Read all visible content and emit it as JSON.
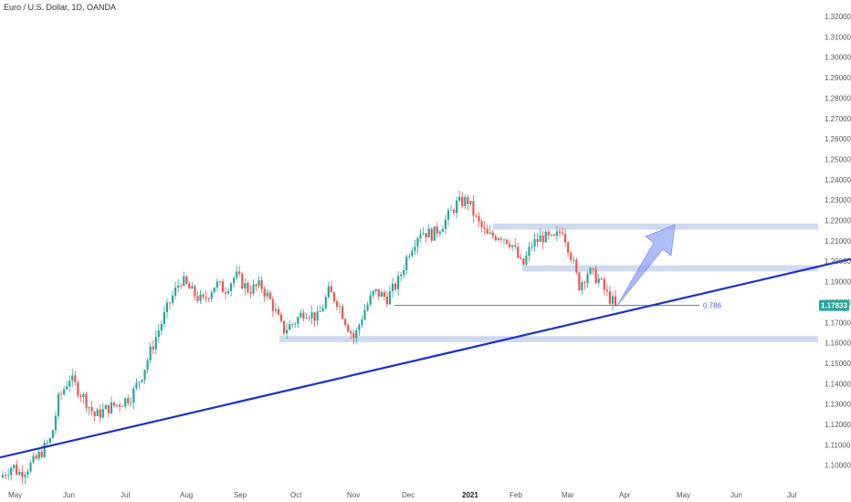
{
  "chart_data": {
    "type": "candlestick",
    "title": "Euro / U.S. Dollar, 1D, OANDA",
    "y_axis": {
      "range": [
        1.0925,
        1.3275
      ],
      "ticks": [
        "1.32000",
        "1.31000",
        "1.30000",
        "1.29000",
        "1.28000",
        "1.27000",
        "1.26000",
        "1.25000",
        "1.24000",
        "1.23000",
        "1.22000",
        "1.21000",
        "1.20000",
        "1.19000",
        "1.18000",
        "1.17000",
        "1.16000",
        "1.15000",
        "1.14000",
        "1.13000",
        "1.12000",
        "1.11000",
        "1.10000"
      ]
    },
    "x_axis": {
      "ticks": [
        {
          "label": "May",
          "bold": false
        },
        {
          "label": "Jun",
          "bold": false
        },
        {
          "label": "Jul",
          "bold": false
        },
        {
          "label": "Aug",
          "bold": false
        },
        {
          "label": "Sep",
          "bold": false
        },
        {
          "label": "Oct",
          "bold": false
        },
        {
          "label": "Nov",
          "bold": false
        },
        {
          "label": "Dec",
          "bold": false
        },
        {
          "label": "2021",
          "bold": true
        },
        {
          "label": "Feb",
          "bold": false
        },
        {
          "label": "Mar",
          "bold": false
        },
        {
          "label": "Apr",
          "bold": false
        },
        {
          "label": "May",
          "bold": false
        },
        {
          "label": "Jun",
          "bold": false
        },
        {
          "label": "Jul",
          "bold": false
        }
      ]
    },
    "last_price": "1.17833",
    "colors": {
      "up": "#26a69a",
      "down": "#ef5350",
      "trendline": "#1e2fd0",
      "zone": "#c5d4ec",
      "arrow": "#8c9ef5",
      "price_tag": "#26a69a"
    },
    "price_path": [
      [
        0,
        1.094
      ],
      [
        14,
        1.1
      ],
      [
        20,
        1.096
      ],
      [
        28,
        1.098
      ],
      [
        38,
        1.102
      ],
      [
        56,
        1.113
      ],
      [
        64,
        1.132
      ],
      [
        76,
        1.143
      ],
      [
        92,
        1.133
      ],
      [
        104,
        1.124
      ],
      [
        118,
        1.128
      ],
      [
        130,
        1.13
      ],
      [
        144,
        1.134
      ],
      [
        156,
        1.145
      ],
      [
        170,
        1.162
      ],
      [
        186,
        1.18
      ],
      [
        198,
        1.191
      ],
      [
        210,
        1.185
      ],
      [
        222,
        1.18
      ],
      [
        236,
        1.189
      ],
      [
        246,
        1.186
      ],
      [
        258,
        1.193
      ],
      [
        272,
        1.186
      ],
      [
        286,
        1.188
      ],
      [
        298,
        1.179
      ],
      [
        310,
        1.166
      ],
      [
        322,
        1.17
      ],
      [
        334,
        1.176
      ],
      [
        348,
        1.172
      ],
      [
        360,
        1.185
      ],
      [
        370,
        1.18
      ],
      [
        380,
        1.169
      ],
      [
        388,
        1.162
      ],
      [
        398,
        1.175
      ],
      [
        410,
        1.185
      ],
      [
        424,
        1.182
      ],
      [
        436,
        1.19
      ],
      [
        448,
        1.205
      ],
      [
        460,
        1.215
      ],
      [
        474,
        1.213
      ],
      [
        488,
        1.22
      ],
      [
        500,
        1.228
      ],
      [
        512,
        1.23
      ],
      [
        522,
        1.22
      ],
      [
        534,
        1.212
      ],
      [
        548,
        1.213
      ],
      [
        560,
        1.209
      ],
      [
        572,
        1.197
      ],
      [
        582,
        1.208
      ],
      [
        594,
        1.212
      ],
      [
        606,
        1.21
      ],
      [
        616,
        1.216
      ],
      [
        626,
        1.202
      ],
      [
        634,
        1.188
      ],
      [
        644,
        1.195
      ],
      [
        656,
        1.191
      ],
      [
        664,
        1.184
      ],
      [
        674,
        1.1783
      ]
    ],
    "annotations": {
      "fib_label": "0.786",
      "fib_level": 1.1783,
      "support_zones": [
        {
          "low": 1.2155,
          "high": 1.2185
        },
        {
          "low": 1.195,
          "high": 1.198
        },
        {
          "low": 1.1603,
          "high": 1.1633
        }
      ],
      "trendline": [
        [
          0,
          1.1038
        ],
        [
          932,
          1.2011
        ]
      ],
      "projection_target": 1.2178
    }
  }
}
